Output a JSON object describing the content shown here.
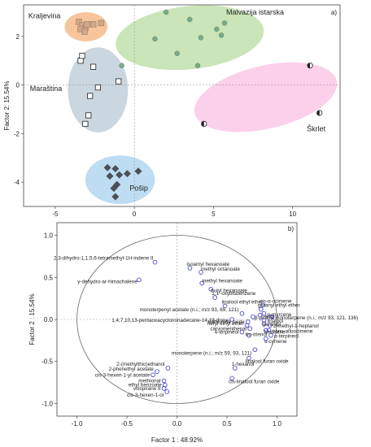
{
  "chart_data": [
    {
      "type": "scatter",
      "panel_label": "a)",
      "xlabel": "",
      "ylabel": "Factor 2: 15.54%",
      "xlim": [
        -7,
        13
      ],
      "ylim": [
        -5,
        3.3
      ],
      "xticks": [
        "-5",
        "0",
        "5",
        "10"
      ],
      "yticks": [
        "-4",
        "-2",
        "0",
        "2"
      ],
      "groups": [
        {
          "name": "Kraljevina",
          "marker": "square",
          "color": "#f5b07a",
          "points": [
            [
              -3.5,
              2.6
            ],
            [
              -3.3,
              2.45
            ],
            [
              -3.1,
              2.35
            ],
            [
              -3.0,
              2.5
            ],
            [
              -2.6,
              2.5
            ],
            [
              -3.4,
              2.3
            ],
            [
              -3.15,
              2.2
            ],
            [
              -2.1,
              2.55
            ]
          ]
        },
        {
          "name": "Malvazija istarska",
          "marker": "circle",
          "color": "#b8dca0",
          "points": [
            [
              2.0,
              3.0
            ],
            [
              3.5,
              2.7
            ],
            [
              5.2,
              2.3
            ],
            [
              5.7,
              2.55
            ],
            [
              5.5,
              2.05
            ],
            [
              1.3,
              1.9
            ],
            [
              2.7,
              1.3
            ],
            [
              4.0,
              0.8
            ],
            [
              4.2,
              1.95
            ],
            [
              -0.8,
              0.8
            ]
          ]
        },
        {
          "name": "Maraština",
          "marker": "square-open",
          "color": "#b8c8d6",
          "points": [
            [
              -3.4,
              1.0
            ],
            [
              -3.3,
              1.2
            ],
            [
              -2.6,
              0.75
            ],
            [
              -1.0,
              0.15
            ],
            [
              -2.3,
              -0.1
            ],
            [
              -2.8,
              -0.45
            ],
            [
              -3.1,
              -1.6
            ],
            [
              -2.9,
              -1.25
            ]
          ]
        },
        {
          "name": "Škrlet",
          "marker": "circle-half",
          "color": "#f9c0e4",
          "points": [
            [
              11.1,
              0.8
            ],
            [
              11.7,
              -1.15
            ],
            [
              4.4,
              -1.6
            ]
          ]
        },
        {
          "name": "Pošip",
          "marker": "diamond",
          "color": "#a8d0ee",
          "points": [
            [
              -1.7,
              -3.4
            ],
            [
              -1.2,
              -3.45
            ],
            [
              -0.95,
              -3.7
            ],
            [
              -0.45,
              -3.65
            ],
            [
              -1.55,
              -3.75
            ],
            [
              -1.1,
              -4.1
            ],
            [
              -1.3,
              -4.25
            ],
            [
              -1.2,
              -4.6
            ],
            [
              0.25,
              -3.55
            ]
          ]
        }
      ]
    },
    {
      "type": "scatter",
      "panel_label": "b)",
      "xlabel": "Factor 1 : 48.92%",
      "ylabel": "Factor 2 : 15.54%",
      "xlim": [
        -1.2,
        1.2
      ],
      "ylim": [
        -1.15,
        1.15
      ],
      "xticks": [
        "-1.0",
        "-0.5",
        "0.0",
        "0.5",
        "1.0"
      ],
      "yticks": [
        "1.0",
        "0.5",
        "0.0",
        "-0.5",
        "-1.0"
      ],
      "points": [
        {
          "label": "2,3-dihydro-1,1,5,6-tetramethyl-1H-indene II",
          "x": -0.22,
          "y": 0.68
        },
        {
          "label": "isoamyl hexanoate",
          "x": 0.13,
          "y": 0.61
        },
        {
          "label": "γ-dehydro-ar-himachalene",
          "x": -0.38,
          "y": 0.47
        },
        {
          "label": "methyl octanoate",
          "x": 0.24,
          "y": 0.56
        },
        {
          "label": "methyl hexanoate",
          "x": 0.25,
          "y": 0.43
        },
        {
          "label": "butyl hexanoate",
          "x": 0.34,
          "y": 0.36
        },
        {
          "label": "1,1'-oxybisbenzene",
          "x": 0.38,
          "y": 0.26
        },
        {
          "label": "linalool ethyl ether",
          "x": 0.48,
          "y": 0.16
        },
        {
          "label": "cis-α-ocimene",
          "x": 0.86,
          "y": 0.17
        },
        {
          "label": "geranyl ethyl ether",
          "x": 0.84,
          "y": 0.12
        },
        {
          "label": "monoterpenyl acetate (n.i.; m/z 93, 69, 121)",
          "x": 0.65,
          "y": 0.07
        },
        {
          "label": "nerol",
          "x": 0.83,
          "y": 0.05
        },
        {
          "label": "α-myrcene",
          "x": 0.87,
          "y": 0.07
        },
        {
          "label": "1,4,7,10,13-pentaoxacyclononadecane-14,19-dione",
          "x": 0.55,
          "y": 0.0
        },
        {
          "label": "β-pinene",
          "x": 0.76,
          "y": 0.03
        },
        {
          "label": "monoterpene (n.i.; m/z 93, 121, 136)",
          "x": 0.95,
          "y": 0.03
        },
        {
          "label": "trans-rose oxide",
          "x": 0.71,
          "y": -0.03
        },
        {
          "label": "linalool",
          "x": 0.87,
          "y": -0.01
        },
        {
          "label": "neryl ethyl ether",
          "x": 0.7,
          "y": -0.07
        },
        {
          "label": "carvomenthenal",
          "x": 0.73,
          "y": -0.11
        },
        {
          "label": "2-methyl-1-heptanol",
          "x": 0.93,
          "y": -0.07
        },
        {
          "label": "geraniol",
          "x": 0.87,
          "y": -0.05
        },
        {
          "label": "4-terpineol",
          "x": 0.65,
          "y": -0.15
        },
        {
          "label": "ho-trienol",
          "x": 0.72,
          "y": -0.19
        },
        {
          "label": "trans-alloocimene",
          "x": 0.92,
          "y": -0.13
        },
        {
          "label": "limonene",
          "x": 0.89,
          "y": -0.13
        },
        {
          "label": "α-terpineol",
          "x": 0.94,
          "y": -0.19
        },
        {
          "label": "o-cymene",
          "x": 0.89,
          "y": -0.23
        },
        {
          "label": "monoterpene (n.i.; m/z 59, 93, 121)",
          "x": 0.78,
          "y": -0.36
        },
        {
          "label": "linalool furan oxide",
          "x": 0.72,
          "y": -0.46
        },
        {
          "label": "1-hexanol",
          "x": 0.58,
          "y": -0.58
        },
        {
          "label": "2-(methylthio)ethanol",
          "x": -0.09,
          "y": -0.58
        },
        {
          "label": "cis-linalool furan oxide",
          "x": 0.55,
          "y": -0.7
        },
        {
          "label": "2-phenethyl acetate",
          "x": -0.2,
          "y": -0.62
        },
        {
          "label": "cis-3-hexen-1-yl acetate",
          "x": -0.24,
          "y": -0.66
        },
        {
          "label": "methional",
          "x": -0.13,
          "y": -0.73
        },
        {
          "label": "ethyl benzoate",
          "x": -0.12,
          "y": -0.78
        },
        {
          "label": "vitispirane II",
          "x": -0.13,
          "y": -0.82
        },
        {
          "label": "cis-3-hexen-1-ol",
          "x": -0.1,
          "y": -0.86
        }
      ]
    }
  ]
}
